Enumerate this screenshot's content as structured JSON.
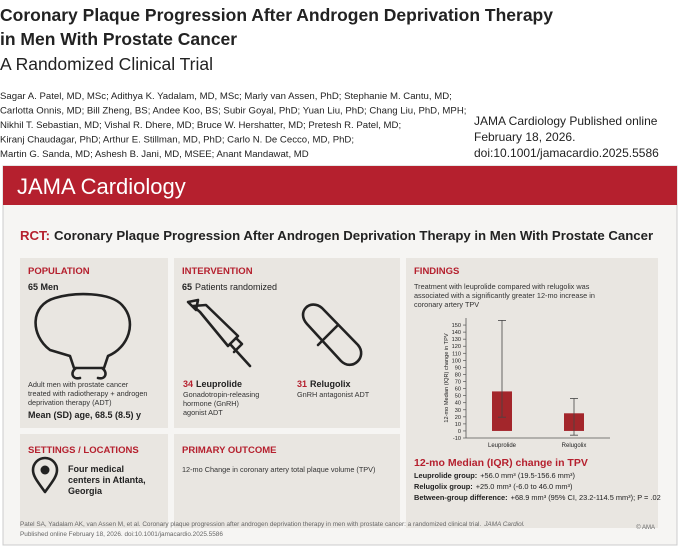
{
  "header": {
    "title_lines": [
      "Coronary Plaque Progression After Androgen Deprivation Therapy",
      "in Men With Prostate Cancer"
    ],
    "subtitle": "A Randomized Clinical Trial",
    "authors": [
      "Sagar A. Patel, MD, MSc; Adithya K. Yadalam, MD, MSc; Marly van Assen, PhD; Stephanie M. Cantu, MD;",
      "Carlotta Onnis, MD; Bill Zheng, BS; Andee Koo, BS; Subir Goyal, PhD; Yuan Liu, PhD; Chang Liu, PhD, MPH;",
      "Nikhil T. Sebastian, MD; Vishal R. Dhere, MD; Bruce W. Hershatter, MD; Pretesh R. Patel, MD;",
      "Kiranj Chaudagar, PhD; Arthur E. Stillman, MD, PhD; Carlo N. De Cecco, MD, PhD;",
      "Martin G. Sanda, MD; Ashesh B. Jani, MD, MSEE; Anant Mandawat, MD"
    ],
    "citation": [
      "JAMA Cardiology Published online",
      "February 18, 2026.",
      "doi:10.1001/jamacardio.2025.5586"
    ]
  },
  "banner": "JAMA Cardiology",
  "rct_title": {
    "label": "RCT:",
    "text": "Coronary Plaque Progression After Androgen Deprivation Therapy in Men With Prostate Cancer"
  },
  "population": {
    "heading": "POPULATION",
    "count": "65 Men",
    "description": [
      "Adult men with prostate cancer",
      "treated with radiotherapy + androgen",
      "deprivation therapy (ADT)"
    ],
    "age": "Mean (SD) age, 68.5 (8.5) y"
  },
  "intervention": {
    "heading": "INTERVENTION",
    "count": "65",
    "count_text": "Patients randomized",
    "arms": [
      {
        "n": "34",
        "name": "Leuprolide",
        "description": [
          "Gonadotropin-releasing",
          "hormone (GnRH)",
          "agonist ADT"
        ]
      },
      {
        "n": "31",
        "name": "Relugolix",
        "description": [
          "GnRH antagonist ADT"
        ]
      }
    ]
  },
  "settings": {
    "heading": "SETTINGS / LOCATIONS",
    "text": [
      "Four medical",
      "centers in Atlanta,",
      "Georgia"
    ]
  },
  "primary_outcome": {
    "heading": "PRIMARY OUTCOME",
    "text": "12-mo Change in coronary artery total plaque volume (TPV)"
  },
  "findings": {
    "heading": "FINDINGS",
    "text": [
      "Treatment with leuprolide compared with relugolix was",
      "associated with a significantly greater 12-mo increase in",
      "coronary artery TPV"
    ],
    "result_heading": "12-mo Median (IQR) change in TPV",
    "results": [
      {
        "label": "Leuprolide group:",
        "text": "+56.0 mm³ (19.5-156.6 mm³)"
      },
      {
        "label": "Relugolix group:",
        "text": "+25.0 mm³ (-6.0 to 46.0 mm³)"
      },
      {
        "label": "Between-group difference:",
        "text": "+68.9 mm³ (95% CI, 23.2-114.5 mm³); P = .02"
      }
    ]
  },
  "footer": {
    "text": "Patel SA, Yadalam AK, van Assen M, et al. Coronary plaque progression after androgen deprivation therapy in men with prostate cancer: a randomized clinical trial.",
    "journal": "JAMA Cardiol.",
    "line2": "Published online February 18, 2026. doi:10.1001/jamacardio.2025.5586",
    "copyright": "© AMA"
  },
  "chart_data": {
    "type": "bar",
    "y_label": "12-mo Median (IQR) change in TPV",
    "categories": [
      "Leuprolide",
      "Relugolix"
    ],
    "values": [
      56.0,
      25.0
    ],
    "iqr_low": [
      19.5,
      -6.0
    ],
    "iqr_high": [
      156.6,
      46.0
    ],
    "color": "#a3262b",
    "ylim": [
      -10,
      160
    ],
    "yticks": [
      -10,
      0,
      10,
      20,
      30,
      40,
      50,
      60,
      70,
      80,
      90,
      100,
      110,
      120,
      130,
      140,
      150
    ],
    "grid": false
  }
}
